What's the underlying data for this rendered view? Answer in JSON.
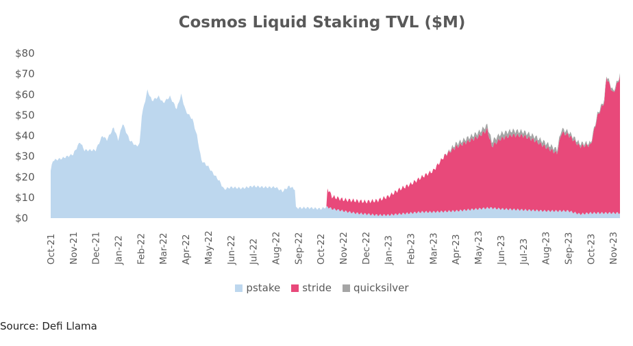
{
  "chart_data": {
    "type": "area",
    "stacked": true,
    "title": "Cosmos Liquid Staking TVL ($M)",
    "xlabel": "",
    "ylabel": "",
    "ylim": [
      0,
      80
    ],
    "x_unit": "months since Oct-21",
    "xlim": [
      0,
      25.3
    ],
    "y_ticks": [
      "$0",
      "$10",
      "$20",
      "$30",
      "$40",
      "$50",
      "$60",
      "$70",
      "$80"
    ],
    "x_ticks": [
      "Oct-21",
      "Nov-21",
      "Dec-21",
      "Jan-22",
      "Feb-22",
      "Mar-22",
      "Apr-22",
      "May-22",
      "Jun-22",
      "Jul-22",
      "Aug-22",
      "Sep-22",
      "Oct-22",
      "Nov-22",
      "Dec-22",
      "Jan-23",
      "Feb-23",
      "Mar-23",
      "Apr-23",
      "May-23",
      "Jun-23",
      "Jul-23",
      "Aug-23",
      "Sep-23",
      "Oct-23",
      "Nov-23"
    ],
    "legend_position": "bottom",
    "grid": false,
    "series": [
      {
        "name": "pstake",
        "color": "#bdd7ee",
        "points": [
          [
            0,
            23
          ],
          [
            0.1,
            28
          ],
          [
            0.5,
            29
          ],
          [
            1,
            31
          ],
          [
            1.3,
            37
          ],
          [
            1.5,
            33
          ],
          [
            2,
            33
          ],
          [
            2.3,
            40
          ],
          [
            2.5,
            38
          ],
          [
            2.8,
            44
          ],
          [
            3,
            38
          ],
          [
            3.2,
            46
          ],
          [
            3.5,
            38
          ],
          [
            3.8,
            35
          ],
          [
            3.95,
            36
          ],
          [
            4.05,
            50
          ],
          [
            4.3,
            62
          ],
          [
            4.5,
            57
          ],
          [
            4.8,
            59
          ],
          [
            5,
            56
          ],
          [
            5.3,
            59
          ],
          [
            5.6,
            53
          ],
          [
            5.8,
            60
          ],
          [
            6,
            52
          ],
          [
            6.3,
            48
          ],
          [
            6.5,
            40
          ],
          [
            6.7,
            28
          ],
          [
            7,
            25
          ],
          [
            7.2,
            22
          ],
          [
            7.5,
            18
          ],
          [
            7.7,
            14
          ],
          [
            8,
            15
          ],
          [
            8.5,
            14.5
          ],
          [
            9,
            15.5
          ],
          [
            9.5,
            15
          ],
          [
            10,
            15
          ],
          [
            10.3,
            13
          ],
          [
            10.6,
            15.5
          ],
          [
            10.85,
            14
          ],
          [
            10.9,
            5
          ],
          [
            11.5,
            5
          ],
          [
            12,
            4.5
          ],
          [
            12.3,
            5.5
          ],
          [
            12.5,
            4.5
          ],
          [
            13,
            3.5
          ],
          [
            13.5,
            2.5
          ],
          [
            14,
            2
          ],
          [
            14.5,
            1.5
          ],
          [
            15,
            1.5
          ],
          [
            15.5,
            2
          ],
          [
            16,
            2.5
          ],
          [
            16.5,
            3
          ],
          [
            17,
            3
          ],
          [
            18,
            3.5
          ],
          [
            19,
            4.5
          ],
          [
            19.5,
            5
          ],
          [
            20,
            4.5
          ],
          [
            21,
            4
          ],
          [
            22,
            3.5
          ],
          [
            23,
            3.5
          ],
          [
            23.5,
            2
          ],
          [
            24,
            2.5
          ],
          [
            25,
            2.5
          ],
          [
            25.3,
            2.5
          ]
        ]
      },
      {
        "name": "stride",
        "color": "#e8497a",
        "points": [
          [
            0,
            0
          ],
          [
            12.25,
            0
          ],
          [
            12.3,
            9
          ],
          [
            12.5,
            6
          ],
          [
            13,
            5.5
          ],
          [
            13.5,
            6
          ],
          [
            14,
            6
          ],
          [
            14.5,
            7
          ],
          [
            15,
            9
          ],
          [
            15.5,
            12
          ],
          [
            16,
            14
          ],
          [
            16.5,
            17
          ],
          [
            17,
            20
          ],
          [
            17.5,
            27
          ],
          [
            18,
            31
          ],
          [
            18.5,
            33
          ],
          [
            19,
            35
          ],
          [
            19.4,
            38
          ],
          [
            19.6,
            30
          ],
          [
            20,
            34
          ],
          [
            20.5,
            36
          ],
          [
            21,
            36
          ],
          [
            21.5,
            34
          ],
          [
            22,
            31
          ],
          [
            22.5,
            28
          ],
          [
            22.7,
            38
          ],
          [
            23,
            37
          ],
          [
            23.5,
            33
          ],
          [
            24,
            33
          ],
          [
            24.3,
            47
          ],
          [
            24.6,
            54
          ],
          [
            24.7,
            66
          ],
          [
            25,
            58
          ],
          [
            25.3,
            66
          ]
        ]
      },
      {
        "name": "quicksilver",
        "color": "#a5a5a5",
        "points": [
          [
            0,
            0
          ],
          [
            17.5,
            0
          ],
          [
            17.8,
            1
          ],
          [
            18,
            1.5
          ],
          [
            19,
            2
          ],
          [
            20,
            2.5
          ],
          [
            21,
            2
          ],
          [
            22,
            2
          ],
          [
            23,
            1.5
          ],
          [
            24,
            1
          ],
          [
            25,
            1
          ],
          [
            25.3,
            1
          ]
        ]
      }
    ]
  },
  "source": "Source: Defi Llama"
}
